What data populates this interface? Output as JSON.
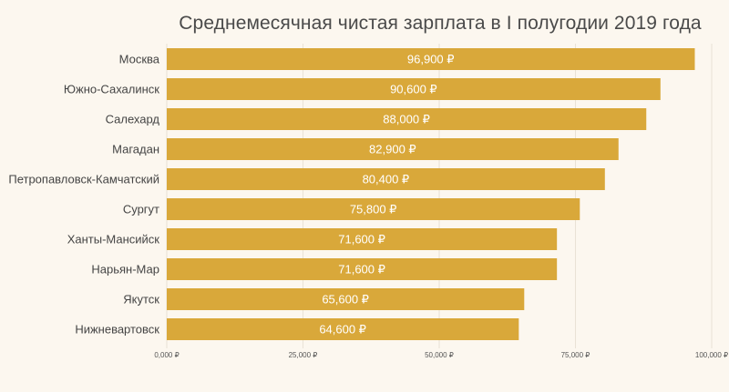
{
  "chart_data": {
    "type": "bar",
    "orientation": "horizontal",
    "title": "Среднемесячная чистая зарплата в I полугодии 2019 года",
    "categories": [
      "Москва",
      "Южно-Сахалинск",
      "Салехард",
      "Магадан",
      "Петропавловск-Камчатский",
      "Сургут",
      "Ханты-Мансийск",
      "Нарьян-Мар",
      "Якутск",
      "Нижневартовск"
    ],
    "values": [
      96900,
      90600,
      88000,
      82900,
      80400,
      75800,
      71600,
      71600,
      65600,
      64600
    ],
    "value_labels": [
      "96,900 ₽",
      "90,600 ₽",
      "88,000 ₽",
      "82,900 ₽",
      "80,400 ₽",
      "75,800 ₽",
      "71,600 ₽",
      "71,600 ₽",
      "65,600 ₽",
      "64,600 ₽"
    ],
    "x_ticks": [
      0,
      25000,
      50000,
      75000,
      100000
    ],
    "x_tick_labels": [
      "0,000 ₽",
      "25,000 ₽",
      "50,000 ₽",
      "75,000 ₽",
      "100,000 ₽"
    ],
    "xlim": [
      0,
      100000
    ],
    "xlabel": "",
    "ylabel": "",
    "bar_color": "#d9a83a",
    "grid": true,
    "legend": "none"
  }
}
